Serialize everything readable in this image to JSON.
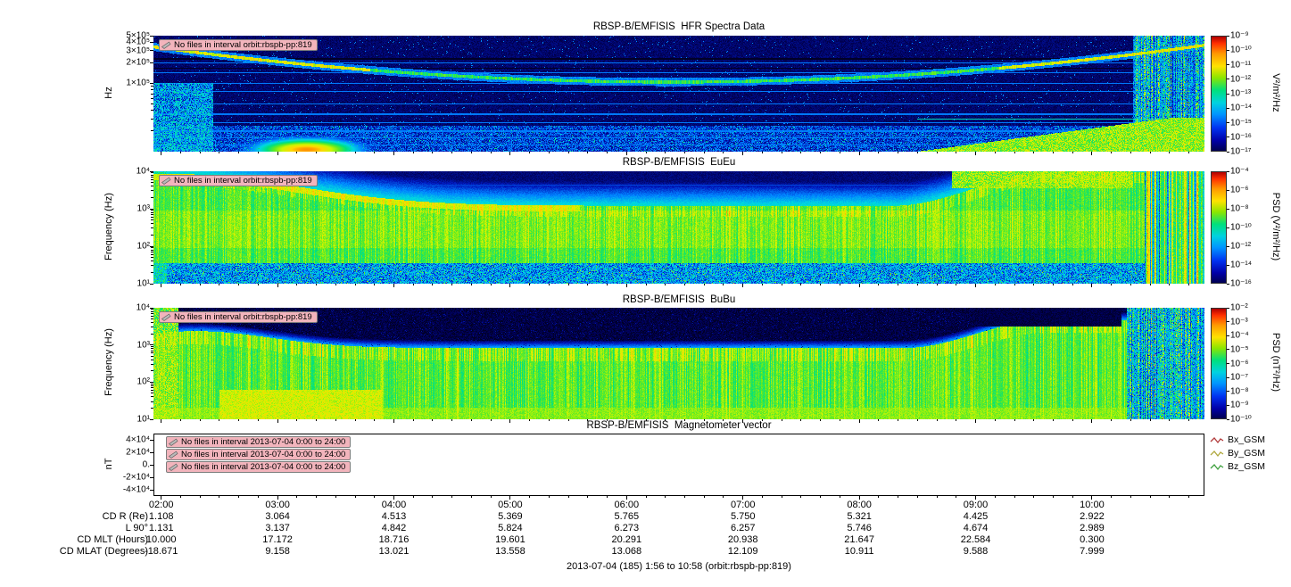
{
  "page": {
    "footer": "2013-07-04 (185) 1:56 to 10:58 (orbit:rbspb-pp:819)"
  },
  "time_axis": {
    "start_label": "1:56",
    "end_label": "10:58",
    "start_hours": 1.9333,
    "end_hours": 10.9667,
    "ticks": [
      {
        "label": "02:00",
        "hours": 2
      },
      {
        "label": "03:00",
        "hours": 3
      },
      {
        "label": "04:00",
        "hours": 4
      },
      {
        "label": "05:00",
        "hours": 5
      },
      {
        "label": "06:00",
        "hours": 6
      },
      {
        "label": "07:00",
        "hours": 7
      },
      {
        "label": "08:00",
        "hours": 8
      },
      {
        "label": "09:00",
        "hours": 9
      },
      {
        "label": "10:00",
        "hours": 10
      }
    ]
  },
  "ephemeris_table": {
    "rows": [
      {
        "label": "CD R (Re)",
        "values": [
          "1.108",
          "3.064",
          "4.513",
          "5.369",
          "5.765",
          "5.750",
          "5.321",
          "4.425",
          "2.922"
        ]
      },
      {
        "label": "L 90°",
        "values": [
          "1.131",
          "3.137",
          "4.842",
          "5.824",
          "6.273",
          "6.257",
          "5.746",
          "4.674",
          "2.989"
        ]
      },
      {
        "label": "CD MLT (Hours)",
        "values": [
          "10.000",
          "17.172",
          "18.716",
          "19.601",
          "20.291",
          "20.938",
          "21.647",
          "22.584",
          "0.300"
        ]
      },
      {
        "label": "CD MLAT (Degrees)",
        "values": [
          "-18.671",
          "9.158",
          "13.021",
          "13.558",
          "13.068",
          "12.109",
          "10.911",
          "9.588",
          "7.999"
        ]
      }
    ]
  },
  "chart_data": [
    {
      "type": "heatmap",
      "title": "RBSP-B/EMFISIS  HFR Spectra Data",
      "ylabel": "Hz",
      "y_scale": "log",
      "y_range_hz": [
        10000,
        500000
      ],
      "y_ticks": [
        {
          "label": "5×10⁵",
          "lf": 5.699
        },
        {
          "label": "4×10⁵",
          "lf": 5.602
        },
        {
          "label": "3×10⁵",
          "lf": 5.477
        },
        {
          "label": "2×10⁵",
          "lf": 5.301
        },
        {
          "label": "1×10⁵",
          "lf": 5.0
        }
      ],
      "warning": "No files in interval orbit:rbspb-pp:819",
      "colorbar": {
        "label": "V²/m²/Hz",
        "colormap": "rainbow (red = high, dark blue = low)",
        "ticks": [
          "10⁻⁹",
          "10⁻¹⁰",
          "10⁻¹¹",
          "10⁻¹²",
          "10⁻¹³",
          "10⁻¹⁴",
          "10⁻¹⁵",
          "10⁻¹⁶",
          "10⁻¹⁷"
        ]
      },
      "features": [
        "Bright narrow upper-hybrid/plasma-frequency curve descending from ~4×10⁵ Hz near 02:30 to ~1×10⁵ Hz around 06:30, rising back to ~4×10⁵ Hz after 10:00",
        "Many fixed-frequency horizontal interference lines across the whole interval",
        "Intense emission near the bottom edge around 03:00–03:40 and from ~08:40 to 10:30",
        "Broadband vertical noise bursts after ~10:20"
      ],
      "render_params": {
        "lf_top": 5.699,
        "lf_bot": 4.0,
        "uh": {
          "t_center": 6.4,
          "lf_min": 5.02,
          "curve": 0.5,
          "t_halfwidth": 4.4
        },
        "rfi_lines": [
          5.3,
          5.16,
          5.0,
          4.88,
          4.7,
          4.55,
          4.42,
          4.3,
          4.2,
          4.1
        ],
        "dark_lines": [
          5.36,
          5.22
        ],
        "blob_left": {
          "t": 3.25,
          "lf": 4.03
        },
        "wedge_right_t": 8.5,
        "streak_t": 10.35
      }
    },
    {
      "type": "heatmap",
      "title": "RBSP-B/EMFISIS  EuEu",
      "ylabel": "Frequency (Hz)",
      "y_scale": "log",
      "y_range_hz": [
        10,
        10000
      ],
      "y_ticks": [
        {
          "label": "10⁴",
          "lf": 4
        },
        {
          "label": "10³",
          "lf": 3
        },
        {
          "label": "10²",
          "lf": 2
        },
        {
          "label": "10¹",
          "lf": 1
        }
      ],
      "warning": "No files in interval orbit:rbspb-pp:819",
      "colorbar": {
        "label": "PSD (V²/m²/Hz)",
        "colormap": "rainbow (red = high, dark blue = low)",
        "ticks": [
          "10⁻⁴",
          "10⁻⁶",
          "10⁻⁸",
          "10⁻¹⁰",
          "10⁻¹²",
          "10⁻¹⁴",
          "10⁻¹⁶"
        ]
      },
      "features": [
        "Broad green electric wave band between ~30 Hz and ~1–2 kHz across the whole pass",
        "Band upper edge descends from ~8 kHz near 02:30 to ~1.5 kHz by 05:00, then rises after 08:30 to ~10 kHz with bright patches at top right",
        "Blue broadband noise below ~30 Hz",
        "Full-bandwidth vertical bursts after ~10:30"
      ],
      "render_params": {
        "lf_top": 4,
        "lf_bot": 1,
        "band": {
          "base": 3.08,
          "left_amp": 0.85,
          "left_t": 2.1,
          "left_w": 1.5,
          "right_amp": 0.95,
          "right_t": 8.3,
          "right_w": 1.4,
          "bottom": 1.55
        },
        "line_lf": 3.62,
        "patch_right": {
          "t0": 8.8,
          "t1": 10.35,
          "lf": 3.55
        },
        "streak_t": 10.45
      }
    },
    {
      "type": "heatmap",
      "title": "RBSP-B/EMFISIS  BuBu",
      "ylabel": "Frequency (Hz)",
      "y_scale": "log",
      "y_range_hz": [
        10,
        10000
      ],
      "y_ticks": [
        {
          "label": "10⁴",
          "lf": 4
        },
        {
          "label": "10³",
          "lf": 3
        },
        {
          "label": "10²",
          "lf": 2
        },
        {
          "label": "10¹",
          "lf": 1
        }
      ],
      "warning": "No files in interval orbit:rbspb-pp:819",
      "colorbar": {
        "label": "PSD (nT²/Hz)",
        "colormap": "rainbow (red = high, dark blue = low)",
        "ticks": [
          "10⁻²",
          "10⁻³",
          "10⁻⁴",
          "10⁻⁵",
          "10⁻⁶",
          "10⁻⁷",
          "10⁻⁸",
          "10⁻⁹",
          "10⁻¹⁰"
        ]
      },
      "features": [
        "Green magnetic wave band between ~10 Hz and ~1 kHz through the pass, brightest below ~60 Hz",
        "Black below-threshold region above ~1–3 kHz; boundary dips mid-pass and rises after 08:30",
        "Bright full-height column at the left edge near 02:00 and yellow patches near the bottom around 03:00–03:30",
        "Dark patch at top right ~09:00–10:15; broadband vertical bursts after ~10:20"
      ],
      "render_params": {
        "lf_top": 4,
        "lf_bot": 1,
        "band": {
          "base": 2.92,
          "left_amp": 0.45,
          "left_t": 2.3,
          "left_w": 0.9,
          "right_amp": 0.75,
          "right_t": 8.4,
          "right_w": 1.2
        },
        "dark_patch": {
          "t0": 9.0,
          "t1": 10.25,
          "lf": 3.5
        },
        "streak_t": 10.3
      }
    },
    {
      "type": "line",
      "title": "RBSP-B/EMFISIS  Magnetometer vector",
      "ylabel": "nT",
      "y_scale": "linear",
      "y_range": [
        -50000,
        50000
      ],
      "y_ticks": [
        {
          "label": "4×10⁴",
          "value": 40000
        },
        {
          "label": "2×10⁴",
          "value": 20000
        },
        {
          "label": "0.",
          "value": 0
        },
        {
          "label": "-2×10⁴",
          "value": -20000
        },
        {
          "label": "-4×10⁴",
          "value": -40000
        }
      ],
      "series": [
        {
          "name": "Bx_GSM",
          "color": "#b23b3b",
          "values": []
        },
        {
          "name": "By_GSM",
          "color": "#b0a83e",
          "values": []
        },
        {
          "name": "Bz_GSM",
          "color": "#3fa03f",
          "values": []
        }
      ],
      "note": "No magnetometer data plotted — empty axes (no files in interval)",
      "warnings": [
        "No files in interval 2013-07-04 0:00 to 24:00",
        "No files in interval 2013-07-04 0:00 to 24:00",
        "No files in interval 2013-07-04 0:00 to 24:00"
      ]
    }
  ]
}
